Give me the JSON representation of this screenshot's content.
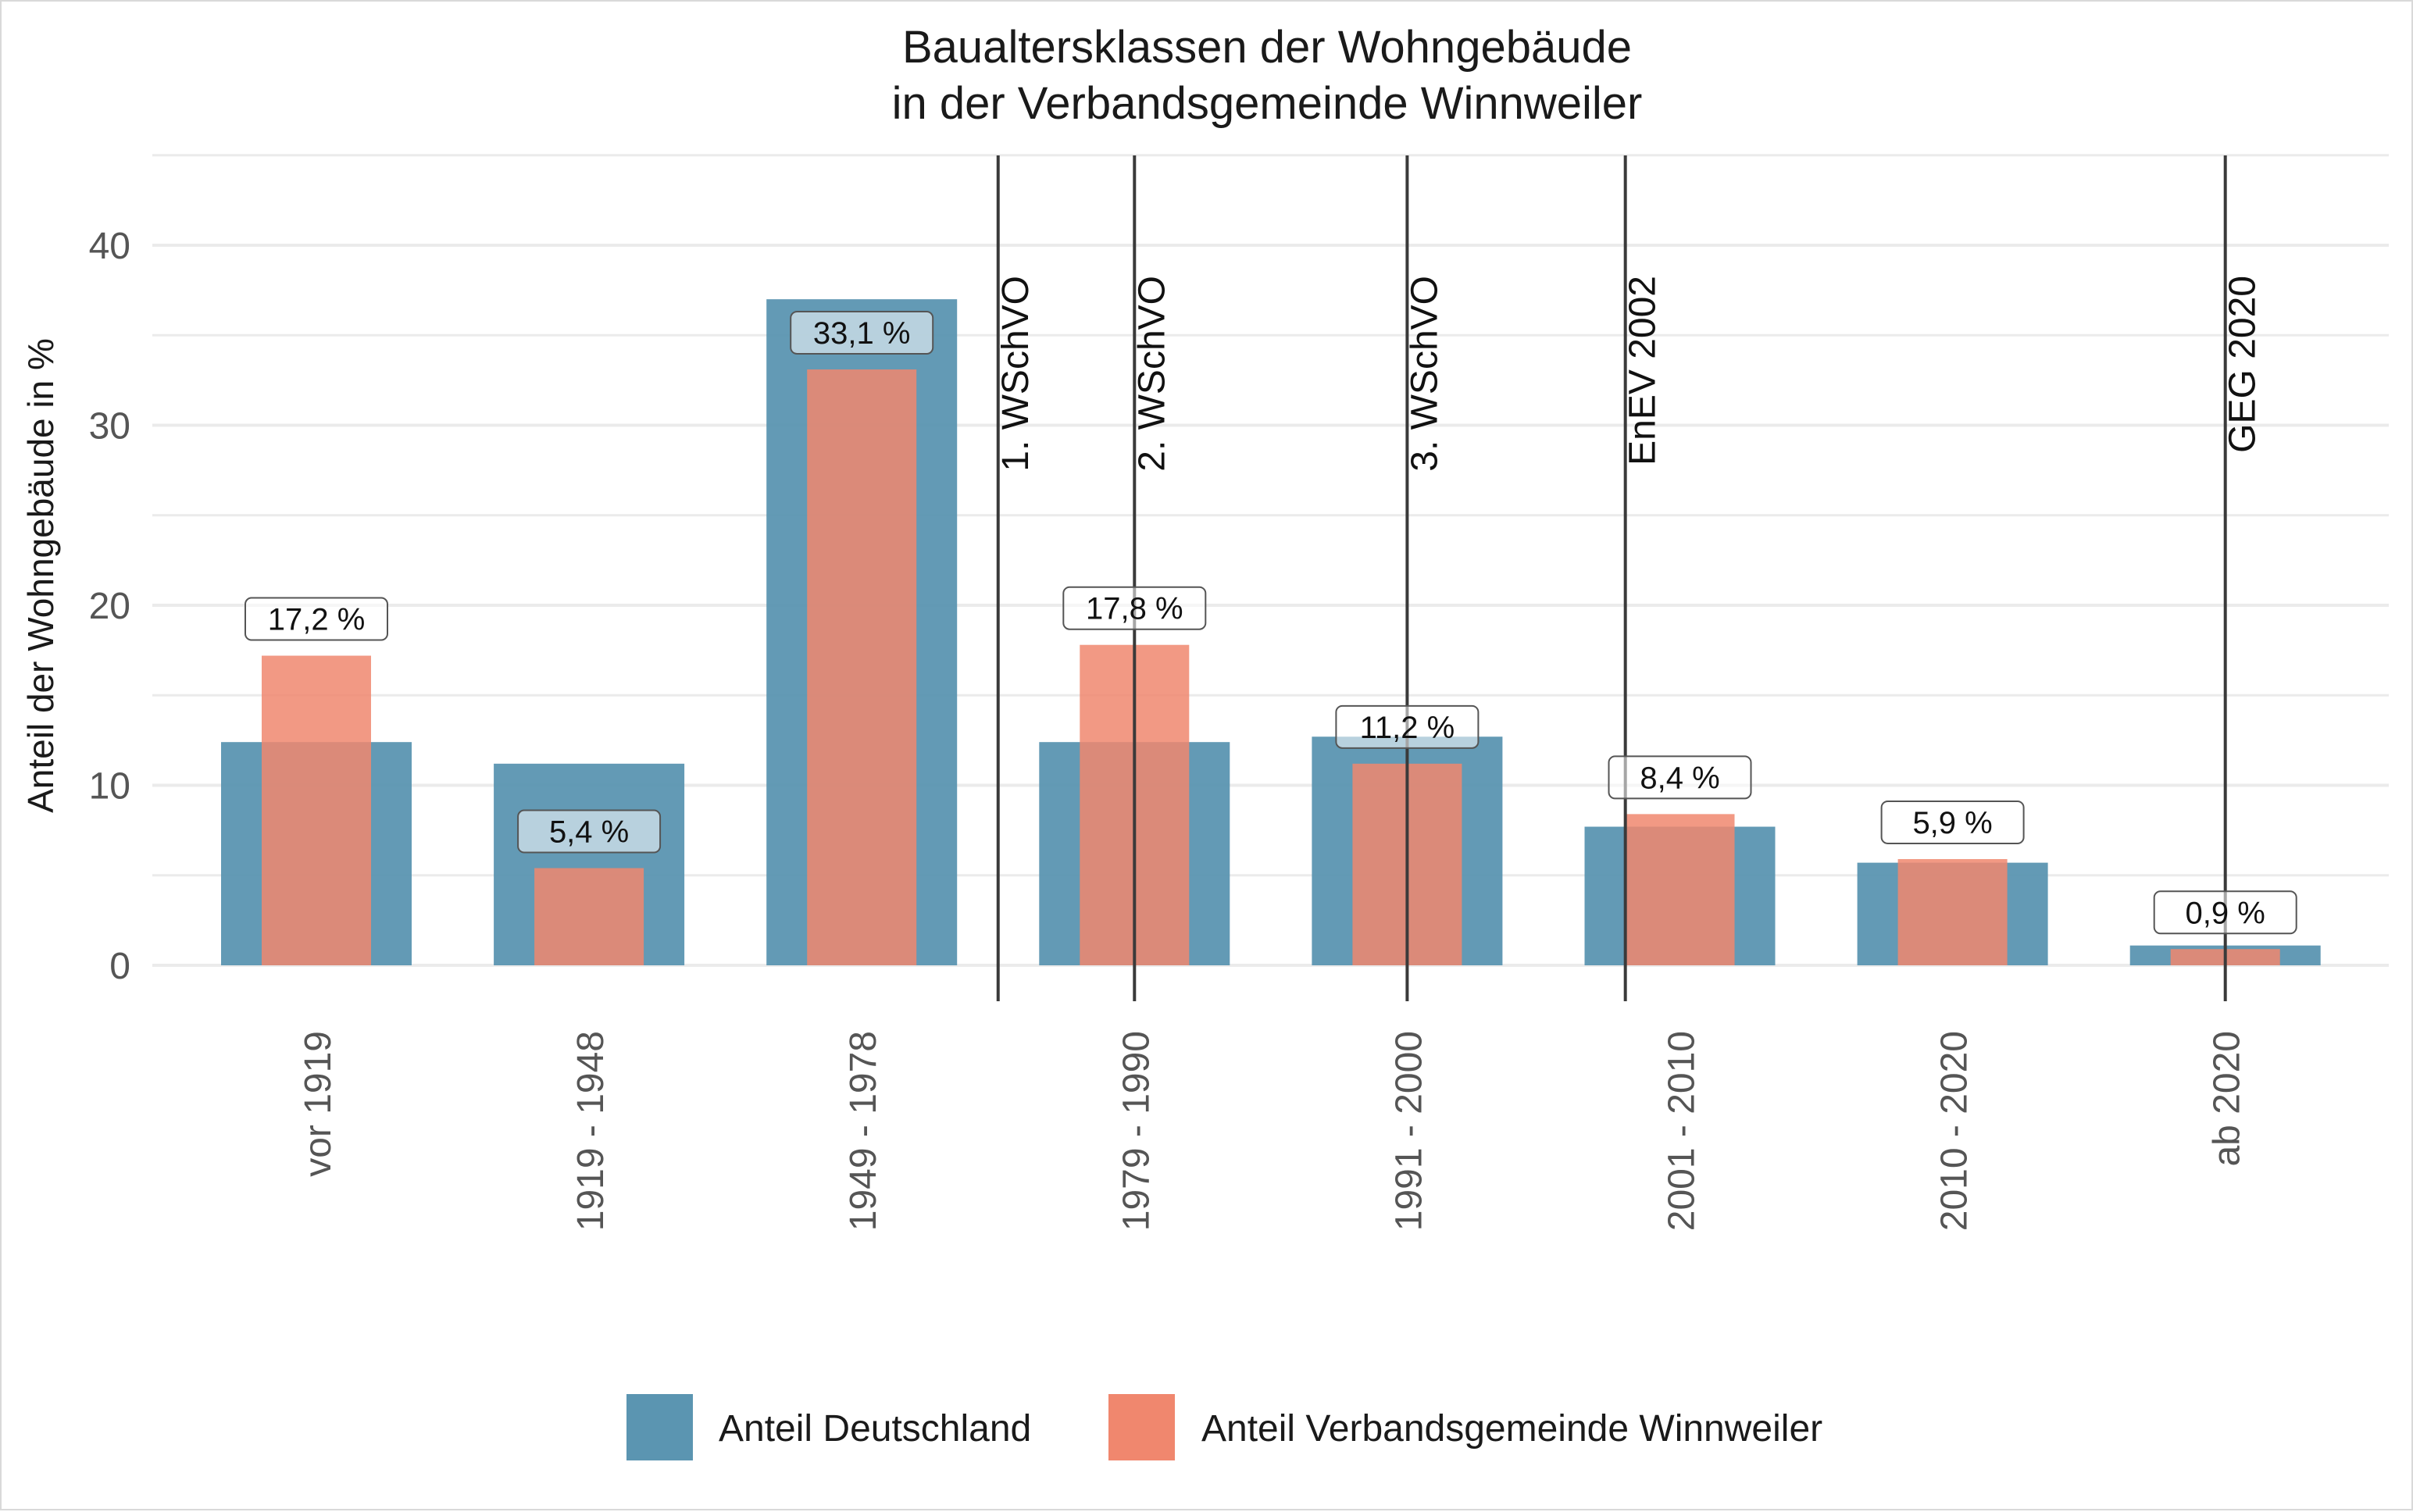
{
  "chart_data": {
    "type": "bar",
    "title": [
      "Baualtersklassen der Wohngebäude",
      "in der Verbandsgemeinde Winnweiler"
    ],
    "xlabel": "",
    "ylabel": "Anteil der Wohngebäude in %",
    "ylim": [
      0,
      45
    ],
    "yticks": [
      0,
      10,
      20,
      30,
      40
    ],
    "grid": true,
    "legend_position": "bottom",
    "categories": [
      "vor 1919",
      "1919 - 1948",
      "1949 - 1978",
      "1979 - 1990",
      "1991 - 2000",
      "2001 - 2010",
      "2010 - 2020",
      "ab 2020"
    ],
    "series": [
      {
        "name": "Anteil Deutschland",
        "color": "#5b95b1",
        "values": [
          12.4,
          11.2,
          37.0,
          12.4,
          12.7,
          7.7,
          5.7,
          1.1
        ]
      },
      {
        "name": "Anteil Verbandsgemeinde Winnweiler",
        "color": "#f0876e",
        "values": [
          17.2,
          5.4,
          33.1,
          17.8,
          11.2,
          8.4,
          5.9,
          0.9
        ],
        "data_labels": [
          "17,2  %",
          "5,4  %",
          "33,1  %",
          "17,8  %",
          "11,2  %",
          "8,4  %",
          "5,9  %",
          "0,9  %"
        ]
      }
    ],
    "annotations": [
      {
        "label": "1. WSchVO",
        "x_category_pos": 2.5
      },
      {
        "label": "2. WSchVO",
        "x_category_pos": 3.0
      },
      {
        "label": "3. WSchVO",
        "x_category_pos": 4.0
      },
      {
        "label": "EnEV 2002",
        "x_category_pos": 4.8
      },
      {
        "label": "GEG 2020",
        "x_category_pos": 7.0
      }
    ]
  }
}
